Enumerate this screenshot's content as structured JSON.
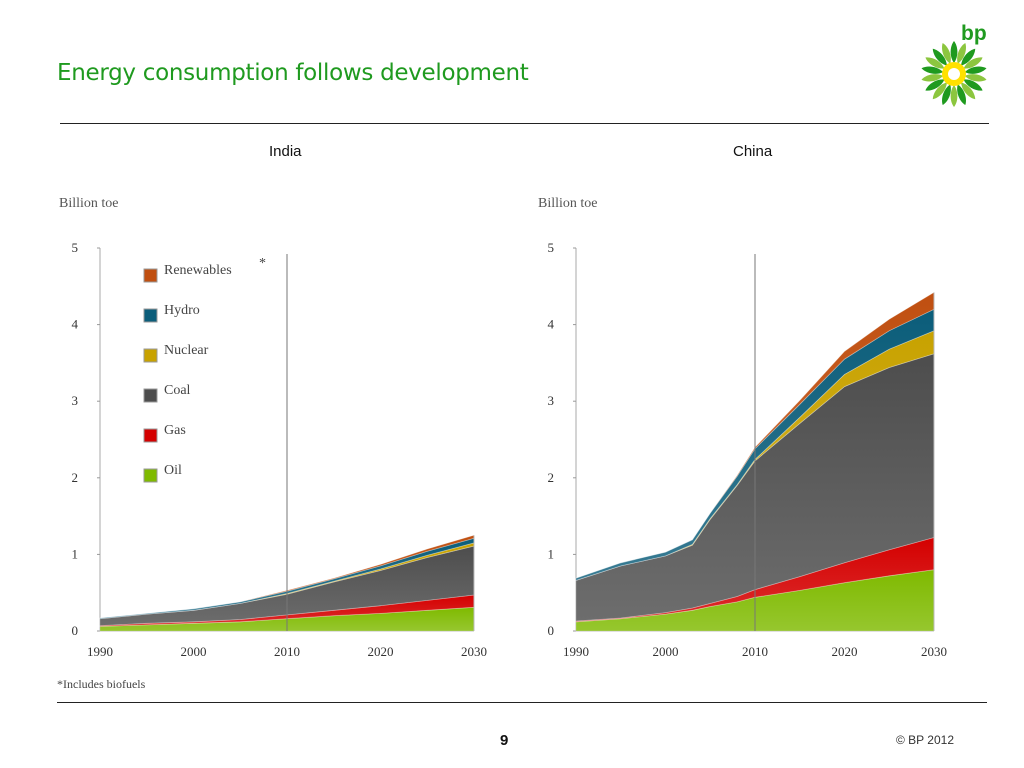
{
  "header": {
    "title": "Energy consumption follows development"
  },
  "logo": {
    "text": "bp"
  },
  "footer": {
    "footnote": "*Includes biofuels",
    "page": "9",
    "copyright": "© BP 2012"
  },
  "colors": {
    "Oil": "#7fba00",
    "Gas": "#d40000",
    "Coal": "#4d4d4d",
    "Nuclear": "#c8a200",
    "Hydro": "#0b5d7a",
    "Renewables": "#c04f10",
    "brand_green": "#1f9a1f"
  },
  "chart_data": [
    {
      "type": "area",
      "stacked": true,
      "title": "India",
      "ylabel": "Billion toe",
      "ylim": [
        0,
        5
      ],
      "xlim": [
        1990,
        2030
      ],
      "x_ticks": [
        "1990",
        "2000",
        "2010",
        "2020",
        "2030"
      ],
      "y_ticks": [
        "0",
        "1",
        "2",
        "3",
        "4",
        "5"
      ],
      "marker_year": 2010,
      "legend_position": "top-left",
      "legend_note": "*",
      "x": [
        1990,
        1995,
        2000,
        2005,
        2010,
        2015,
        2020,
        2025,
        2030
      ],
      "series": [
        {
          "name": "Oil",
          "values": [
            0.06,
            0.08,
            0.1,
            0.12,
            0.16,
            0.2,
            0.23,
            0.27,
            0.31
          ]
        },
        {
          "name": "Gas",
          "values": [
            0.01,
            0.02,
            0.02,
            0.03,
            0.05,
            0.07,
            0.1,
            0.13,
            0.16
          ]
        },
        {
          "name": "Coal",
          "values": [
            0.09,
            0.12,
            0.15,
            0.21,
            0.27,
            0.37,
            0.46,
            0.56,
            0.64
          ]
        },
        {
          "name": "Nuclear",
          "values": [
            0.0,
            0.0,
            0.0,
            0.0,
            0.01,
            0.01,
            0.02,
            0.03,
            0.04
          ]
        },
        {
          "name": "Hydro",
          "values": [
            0.01,
            0.01,
            0.02,
            0.02,
            0.03,
            0.03,
            0.04,
            0.05,
            0.06
          ]
        },
        {
          "name": "Renewables",
          "values": [
            0.0,
            0.0,
            0.0,
            0.0,
            0.01,
            0.01,
            0.02,
            0.03,
            0.04
          ]
        }
      ]
    },
    {
      "type": "area",
      "stacked": true,
      "title": "China",
      "ylabel": "Billion toe",
      "ylim": [
        0,
        5
      ],
      "xlim": [
        1990,
        2030
      ],
      "x_ticks": [
        "1990",
        "2000",
        "2010",
        "2020",
        "2030"
      ],
      "y_ticks": [
        "0",
        "1",
        "2",
        "3",
        "4",
        "5"
      ],
      "marker_year": 2010,
      "x": [
        1990,
        1995,
        2000,
        2003,
        2005,
        2008,
        2010,
        2015,
        2020,
        2025,
        2030
      ],
      "series": [
        {
          "name": "Oil",
          "values": [
            0.12,
            0.16,
            0.22,
            0.27,
            0.32,
            0.38,
            0.44,
            0.53,
            0.63,
            0.72,
            0.8
          ]
        },
        {
          "name": "Gas",
          "values": [
            0.01,
            0.01,
            0.02,
            0.03,
            0.04,
            0.07,
            0.1,
            0.18,
            0.26,
            0.34,
            0.42
          ]
        },
        {
          "name": "Coal",
          "values": [
            0.53,
            0.68,
            0.74,
            0.82,
            1.1,
            1.45,
            1.68,
            2.0,
            2.3,
            2.38,
            2.4
          ]
        },
        {
          "name": "Nuclear",
          "values": [
            0.0,
            0.0,
            0.0,
            0.01,
            0.01,
            0.01,
            0.02,
            0.08,
            0.16,
            0.24,
            0.3
          ]
        },
        {
          "name": "Hydro",
          "values": [
            0.03,
            0.04,
            0.05,
            0.06,
            0.07,
            0.11,
            0.14,
            0.17,
            0.2,
            0.24,
            0.28
          ]
        },
        {
          "name": "Renewables",
          "values": [
            0.0,
            0.0,
            0.0,
            0.0,
            0.0,
            0.01,
            0.02,
            0.05,
            0.1,
            0.15,
            0.22
          ]
        }
      ]
    }
  ]
}
